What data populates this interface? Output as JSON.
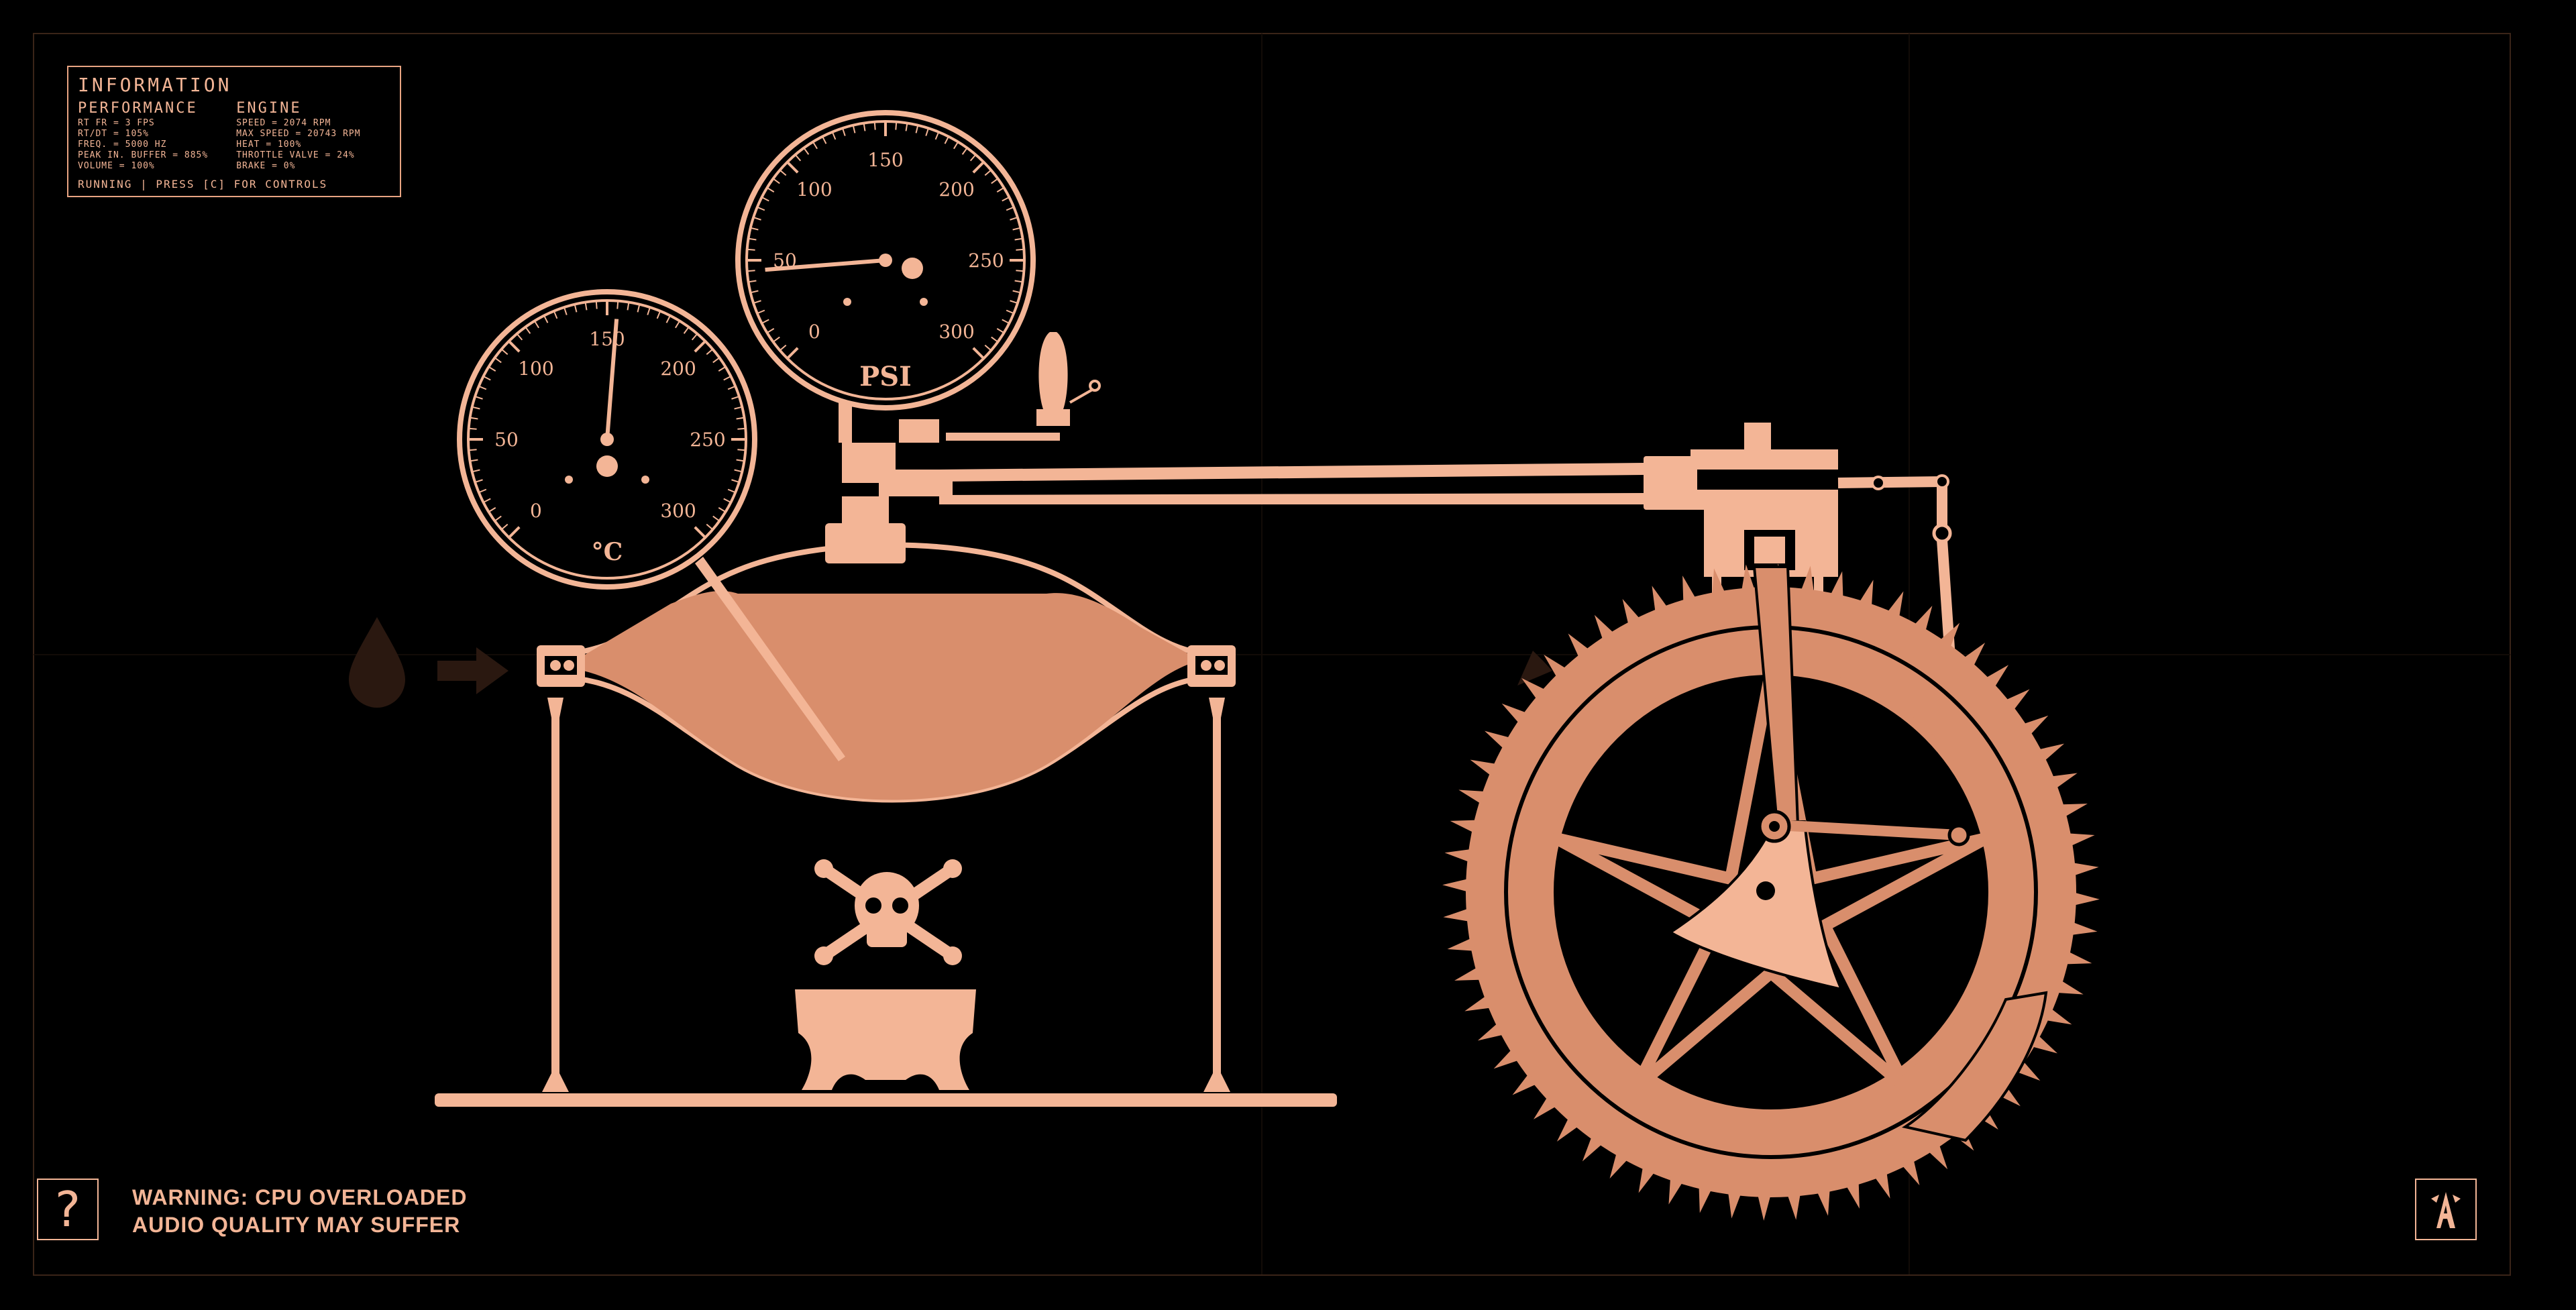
{
  "info": {
    "title": "INFORMATION",
    "performance": {
      "heading": "PERFORMANCE",
      "lines": [
        "RT FR = 3 FPS",
        "RT/DT = 105%",
        "FREQ. = 5000 HZ",
        "PEAK IN. BUFFER = 885%",
        "VOLUME = 100%"
      ]
    },
    "engine": {
      "heading": "ENGINE",
      "lines": [
        "SPEED = 2074 RPM",
        "MAX SPEED = 20743 RPM",
        "HEAT = 100%",
        "THROTTLE VALVE = 24%",
        "BRAKE = 0%"
      ]
    },
    "status": "RUNNING | PRESS [C] FOR CONTROLS"
  },
  "gauges": {
    "temperature": {
      "unit": "°C",
      "ticks": [
        "0",
        "50",
        "100",
        "150",
        "200",
        "250",
        "300"
      ],
      "value": 155,
      "max": 300
    },
    "pressure": {
      "unit": "PSI",
      "ticks": [
        "0",
        "50",
        "100",
        "150",
        "200",
        "250",
        "300"
      ],
      "value": 45,
      "max": 300
    }
  },
  "help_button": {
    "label": "?"
  },
  "warning": {
    "line1": "WARNING: CPU OVERLOADED",
    "line2": "AUDIO QUALITY MAY SUFFER"
  },
  "icons": {
    "water": "water-drop-icon",
    "arrow": "arrow-right-icon",
    "skull": "skull-crossbones-icon",
    "logo": "a-logo-icon"
  },
  "colors": {
    "accent": "#f3b596",
    "metal": "#e8a482",
    "fill": "#d98e6c",
    "background": "#000000"
  }
}
